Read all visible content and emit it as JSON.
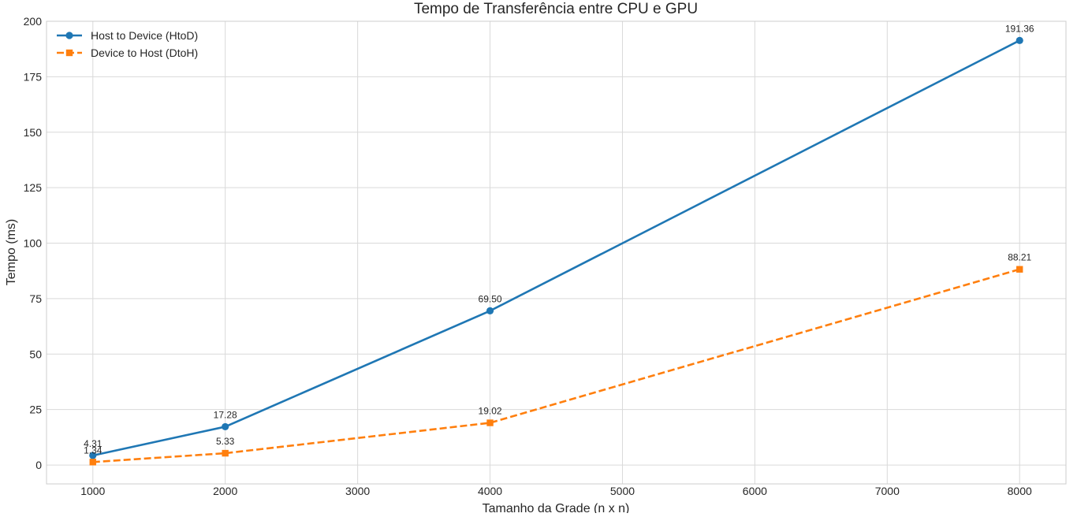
{
  "chart_data": {
    "type": "line",
    "title": "Tempo de Transferência entre CPU e GPU",
    "xlabel": "Tamanho da Grade (n x n)",
    "ylabel": "Tempo (ms)",
    "xlim": [
      650,
      8350
    ],
    "ylim": [
      -8.5,
      200
    ],
    "x_ticks": [
      1000,
      2000,
      3000,
      4000,
      5000,
      6000,
      7000,
      8000
    ],
    "y_ticks": [
      0,
      25,
      50,
      75,
      100,
      125,
      150,
      175,
      200
    ],
    "grid": true,
    "legend_position": "top-left",
    "x": [
      1000,
      2000,
      4000,
      8000
    ],
    "series": [
      {
        "name": "Host to Device (HtoD)",
        "values": [
          4.31,
          17.28,
          69.5,
          191.36
        ],
        "labels": [
          "4.31",
          "17.28",
          "69.50",
          "191.36"
        ],
        "color": "#1f77b4",
        "marker": "circle",
        "line_style": "solid"
      },
      {
        "name": "Device to Host (DtoH)",
        "values": [
          1.34,
          5.33,
          19.02,
          88.21
        ],
        "labels": [
          "1.34",
          "5.33",
          "19.02",
          "88.21"
        ],
        "color": "#ff7f0e",
        "marker": "square",
        "line_style": "dashed"
      }
    ]
  }
}
